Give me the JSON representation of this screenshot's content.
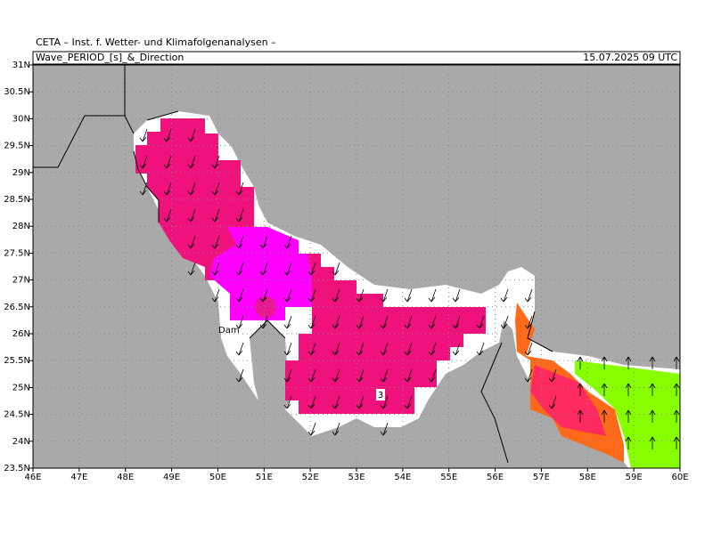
{
  "header": {
    "institute": "CETA – Inst. f. Wetter- und Klimafolgenanalysen –",
    "title": "Wave_PERIOD_[s]_&_Direction",
    "valid_time": "15.07.2025 09 UTC"
  },
  "map": {
    "lon_range": [
      46,
      60
    ],
    "lat_range": [
      23.5,
      31
    ],
    "lon_ticks": [
      {
        "value": 46,
        "label": "46E"
      },
      {
        "value": 47,
        "label": "47E"
      },
      {
        "value": 48,
        "label": "48E"
      },
      {
        "value": 49,
        "label": "49E"
      },
      {
        "value": 50,
        "label": "50E"
      },
      {
        "value": 51,
        "label": "51E"
      },
      {
        "value": 52,
        "label": "52E"
      },
      {
        "value": 53,
        "label": "53E"
      },
      {
        "value": 54,
        "label": "54E"
      },
      {
        "value": 55,
        "label": "55E"
      },
      {
        "value": 56,
        "label": "56E"
      },
      {
        "value": 57,
        "label": "57E"
      },
      {
        "value": 58,
        "label": "58E"
      },
      {
        "value": 59,
        "label": "59E"
      },
      {
        "value": 60,
        "label": "60E"
      }
    ],
    "lat_ticks": [
      {
        "value": 31,
        "label": "31N"
      },
      {
        "value": 30.5,
        "label": "30.5N"
      },
      {
        "value": 30,
        "label": "30N"
      },
      {
        "value": 29.5,
        "label": "29.5N"
      },
      {
        "value": 29,
        "label": "29N"
      },
      {
        "value": 28.5,
        "label": "28.5N"
      },
      {
        "value": 28,
        "label": "28N"
      },
      {
        "value": 27.5,
        "label": "27.5N"
      },
      {
        "value": 27,
        "label": "27N"
      },
      {
        "value": 26.5,
        "label": "26.5N"
      },
      {
        "value": 26,
        "label": "26N"
      },
      {
        "value": 25.5,
        "label": "25.5N"
      },
      {
        "value": 25,
        "label": "25N"
      },
      {
        "value": 24.5,
        "label": "24.5N"
      },
      {
        "value": 24,
        "label": "24N"
      },
      {
        "value": 23.5,
        "label": "23.5N"
      }
    ],
    "contour_label": "3",
    "city_label": "Dam"
  }
}
